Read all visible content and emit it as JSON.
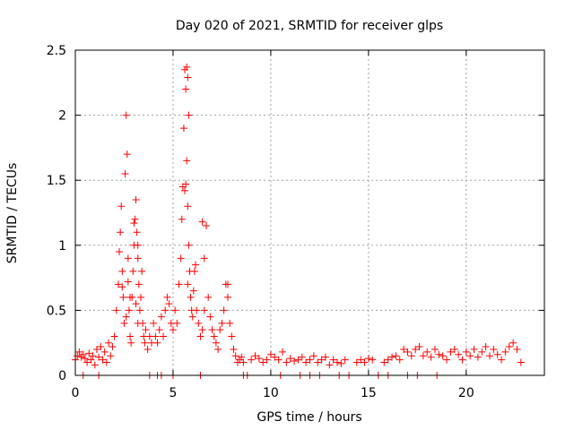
{
  "chart_data": {
    "type": "scatter",
    "title": "Day 020 of 2021, SRMTID for receiver glps",
    "xlabel": "GPS time / hours",
    "ylabel": "SRMTID / TECUs",
    "xlim": [
      0,
      24
    ],
    "ylim": [
      0,
      2.5
    ],
    "xticks": [
      0,
      5,
      10,
      15,
      20
    ],
    "xtick_labels": [
      "0",
      "5",
      "10",
      "15",
      "20"
    ],
    "yticks": [
      0,
      0.5,
      1,
      1.5,
      2,
      2.5
    ],
    "ytick_labels": [
      "0",
      "0.5",
      "1",
      "1.5",
      "2",
      "2.5"
    ],
    "grid": true,
    "marker": "+",
    "series": [
      {
        "name": "SRMTID",
        "color": "#ff0000",
        "x": [
          0.0,
          0.1,
          0.2,
          0.3,
          0.4,
          0.5,
          0.6,
          0.7,
          0.8,
          0.9,
          1.0,
          1.1,
          1.2,
          1.3,
          1.4,
          1.5,
          1.6,
          1.7,
          1.8,
          1.9,
          2.0,
          2.1,
          2.2,
          2.25,
          2.3,
          2.35,
          2.4,
          2.45,
          2.5,
          2.55,
          2.6,
          2.65,
          2.7,
          2.75,
          2.8,
          2.85,
          2.9,
          2.95,
          3.0,
          3.05,
          3.1,
          3.15,
          3.2,
          3.25,
          3.3,
          3.35,
          3.4,
          3.45,
          3.5,
          3.55,
          3.6,
          3.7,
          3.8,
          3.9,
          4.0,
          4.1,
          4.2,
          4.3,
          4.4,
          4.5,
          4.6,
          4.7,
          4.8,
          4.9,
          5.0,
          5.1,
          5.2,
          5.3,
          5.4,
          5.45,
          5.5,
          5.55,
          5.6,
          5.65,
          5.7,
          5.75,
          5.8,
          5.85,
          5.9,
          5.95,
          6.0,
          6.05,
          6.1,
          6.15,
          6.2,
          6.3,
          6.4,
          6.5,
          6.6,
          6.7,
          6.8,
          6.9,
          7.0,
          7.1,
          7.2,
          7.3,
          7.4,
          7.5,
          7.6,
          7.7,
          7.8,
          7.9,
          8.0,
          8.1,
          8.2,
          8.3,
          8.4,
          8.5,
          8.6,
          9.0,
          9.2,
          9.4,
          9.6,
          9.8,
          10.0,
          10.2,
          10.4,
          10.6,
          10.8,
          11.0,
          11.2,
          11.4,
          11.6,
          11.8,
          12.0,
          12.2,
          12.4,
          12.6,
          12.8,
          13.0,
          13.2,
          13.4,
          13.6,
          13.8,
          14.4,
          14.6,
          14.8,
          15.0,
          15.2,
          15.8,
          16.0,
          16.2,
          16.4,
          16.6,
          16.8,
          17.0,
          17.2,
          17.4,
          17.6,
          17.8,
          18.0,
          18.2,
          18.4,
          18.6,
          18.8,
          19.0,
          19.2,
          19.4,
          19.6,
          19.8,
          20.0,
          20.2,
          20.4,
          20.6,
          20.8,
          21.0,
          21.2,
          21.4,
          21.6,
          21.8,
          22.0,
          22.2,
          22.4,
          22.6,
          22.8,
          2.6,
          2.7,
          3.1,
          3.2,
          5.7,
          5.75,
          5.8,
          5.65,
          5.6,
          5.75,
          2.4,
          3.2,
          3.0,
          2.8,
          6.5,
          6.6,
          7.8,
          0.4,
          1.2,
          3.8,
          4.2,
          4.4,
          5.0,
          6.4,
          8.6,
          8.8,
          10.5,
          11.5,
          12.0,
          12.5,
          13.5,
          14.0,
          15.5,
          16.0,
          17.0,
          17.5,
          18.5
        ],
        "y": [
          0.12,
          0.15,
          0.18,
          0.14,
          0.16,
          0.13,
          0.1,
          0.17,
          0.12,
          0.15,
          0.08,
          0.2,
          0.14,
          0.22,
          0.12,
          0.18,
          0.1,
          0.25,
          0.15,
          0.22,
          0.3,
          0.5,
          0.7,
          0.95,
          1.1,
          1.3,
          0.8,
          0.6,
          0.4,
          1.55,
          2.0,
          1.7,
          0.9,
          0.5,
          0.3,
          0.25,
          0.6,
          0.8,
          1.0,
          1.2,
          1.35,
          1.1,
          0.9,
          0.7,
          0.5,
          0.6,
          0.8,
          0.4,
          0.3,
          0.25,
          0.35,
          0.2,
          0.3,
          0.25,
          0.4,
          0.3,
          0.25,
          0.35,
          0.45,
          0.3,
          0.5,
          0.6,
          0.55,
          0.4,
          0.35,
          0.5,
          0.4,
          0.7,
          0.9,
          1.2,
          1.45,
          1.9,
          2.35,
          2.2,
          1.65,
          1.3,
          1.0,
          0.8,
          0.6,
          0.5,
          0.45,
          0.65,
          0.8,
          0.85,
          0.5,
          0.4,
          0.3,
          0.35,
          0.9,
          1.15,
          0.6,
          0.45,
          0.35,
          0.3,
          0.25,
          0.2,
          0.35,
          0.4,
          0.5,
          0.7,
          0.6,
          0.4,
          0.3,
          0.2,
          0.15,
          0.1,
          0.12,
          0.14,
          0.1,
          0.12,
          0.15,
          0.13,
          0.1,
          0.12,
          0.16,
          0.14,
          0.12,
          0.18,
          0.1,
          0.13,
          0.11,
          0.12,
          0.14,
          0.1,
          0.12,
          0.15,
          0.1,
          0.12,
          0.14,
          0.08,
          0.12,
          0.1,
          0.09,
          0.12,
          0.1,
          0.12,
          0.1,
          0.13,
          0.12,
          0.1,
          0.12,
          0.14,
          0.15,
          0.12,
          0.2,
          0.18,
          0.15,
          0.2,
          0.22,
          0.15,
          0.18,
          0.14,
          0.2,
          0.16,
          0.15,
          0.12,
          0.18,
          0.2,
          0.16,
          0.12,
          0.18,
          0.15,
          0.2,
          0.14,
          0.18,
          0.22,
          0.15,
          0.2,
          0.16,
          0.12,
          0.18,
          0.22,
          0.25,
          0.2,
          0.1,
          0.45,
          0.72,
          0.55,
          0.4,
          2.37,
          2.29,
          2.0,
          1.47,
          1.42,
          0.7,
          0.68,
          1.0,
          1.17,
          0.6,
          1.18,
          0.5,
          0.7,
          0.0,
          0.0,
          0.0,
          0.0,
          0.0,
          0.0,
          0.0,
          0.0,
          0.0,
          0.0,
          0.0,
          0.0,
          0.0,
          0.0,
          0.0,
          0.0,
          0.0,
          0.0,
          0.0,
          0.0
        ]
      }
    ]
  }
}
